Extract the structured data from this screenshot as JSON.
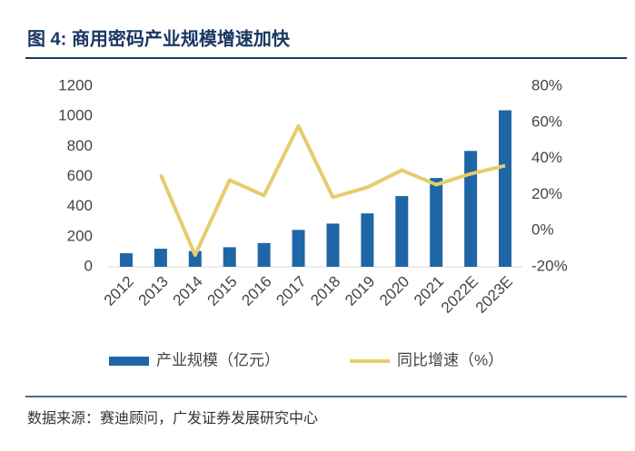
{
  "chart_data": {
    "type": "bar-line",
    "title": "图 4: 商用密码产业规模增速加快",
    "source": "数据来源：赛迪顾问，广发证券发展研究中心",
    "categories": [
      "2012",
      "2013",
      "2014",
      "2015",
      "2016",
      "2017",
      "2018",
      "2019",
      "2020",
      "2021",
      "2022E",
      "2023E"
    ],
    "series": [
      {
        "name": "产业规模（亿元）",
        "type": "bar",
        "color": "#1f66a6",
        "values": [
          90,
          120,
          105,
          130,
          158,
          245,
          287,
          355,
          470,
          590,
          770,
          1040
        ]
      },
      {
        "name": "同比增速（%）",
        "type": "line",
        "axis": "y2",
        "color": "#e6cc6c",
        "values": [
          null,
          31,
          -13.5,
          28,
          19.5,
          58,
          18.5,
          24,
          33.5,
          25.5,
          31.5,
          36
        ]
      }
    ],
    "ylim": [
      0,
      1200
    ],
    "yticks": [
      0,
      200,
      400,
      600,
      800,
      1000,
      1200
    ],
    "y2lim": [
      -20,
      80
    ],
    "y2ticks": [
      {
        "value": -20,
        "label": "-20%"
      },
      {
        "value": 0,
        "label": "0%"
      },
      {
        "value": 20,
        "label": "20%"
      },
      {
        "value": 40,
        "label": "40%"
      },
      {
        "value": 60,
        "label": "60%"
      },
      {
        "value": 80,
        "label": "80%"
      }
    ],
    "legend": "bottom",
    "grid": false
  }
}
